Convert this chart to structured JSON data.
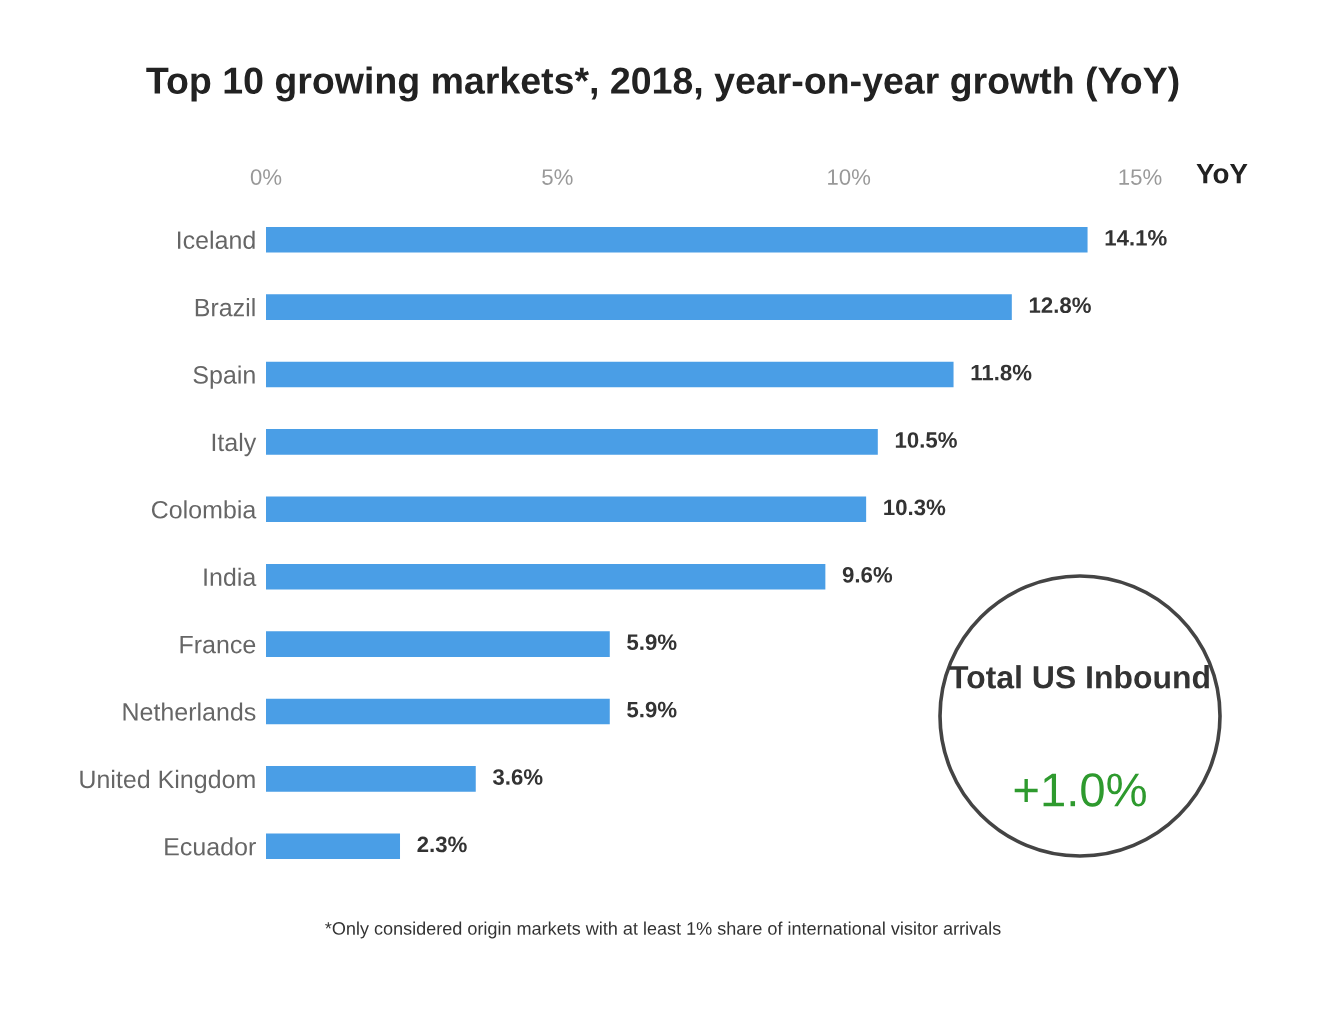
{
  "chart_data": {
    "type": "bar",
    "orientation": "horizontal",
    "title": "Top 10 growing markets*, 2018, year-on-year growth (YoY)",
    "xlabel": "YoY",
    "categories": [
      "Iceland",
      "Brazil",
      "Spain",
      "Italy",
      "Colombia",
      "India",
      "France",
      "Netherlands",
      "United Kingdom",
      "Ecuador"
    ],
    "values": [
      14.1,
      12.8,
      11.8,
      10.5,
      10.3,
      9.6,
      5.9,
      5.9,
      3.6,
      2.3
    ],
    "value_labels": [
      "14.1%",
      "12.8%",
      "11.8%",
      "10.5%",
      "10.3%",
      "9.6%",
      "5.9%",
      "5.9%",
      "3.6%",
      "2.3%"
    ],
    "color": "#4a9ee6",
    "xlim": [
      0,
      15
    ],
    "xticks": [
      {
        "value": 0,
        "label": "0%"
      },
      {
        "value": 5,
        "label": "5%"
      },
      {
        "value": 10,
        "label": "10%"
      },
      {
        "value": 15,
        "label": "15%"
      }
    ],
    "grid": false,
    "annotations": [
      "Total US Inbound",
      "+1.0%",
      "*Only considered origin markets with at least 1% share of international visitor arrivals"
    ]
  }
}
